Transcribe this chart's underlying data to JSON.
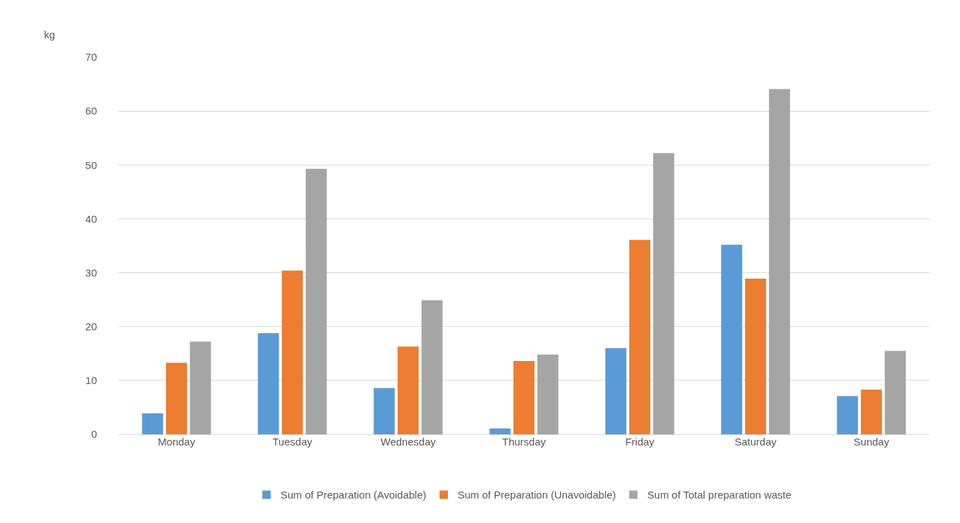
{
  "chart_data": {
    "type": "bar",
    "ylabel": "kg",
    "categories": [
      "Monday",
      "Tuesday",
      "Wednesday",
      "Thursday",
      "Friday",
      "Saturday",
      "Sunday"
    ],
    "series": [
      {
        "name": "Sum of Preparation (Avoidable)",
        "color": "#5b9bd5",
        "values": [
          3.9,
          18.8,
          8.6,
          1.1,
          16.0,
          35.2,
          7.1
        ]
      },
      {
        "name": "Sum of Preparation (Unavoidable)",
        "color": "#ed7d31",
        "values": [
          13.3,
          30.4,
          16.3,
          13.6,
          36.1,
          28.9,
          8.3
        ]
      },
      {
        "name": "Sum of Total preparation waste",
        "color": "#a5a5a5",
        "values": [
          17.2,
          49.3,
          24.9,
          14.8,
          52.2,
          64.1,
          15.5
        ]
      }
    ],
    "ylim": [
      0,
      70
    ],
    "yticks": [
      0,
      10,
      20,
      30,
      40,
      50,
      60,
      70
    ],
    "grid": "y",
    "legend": "bottom"
  }
}
